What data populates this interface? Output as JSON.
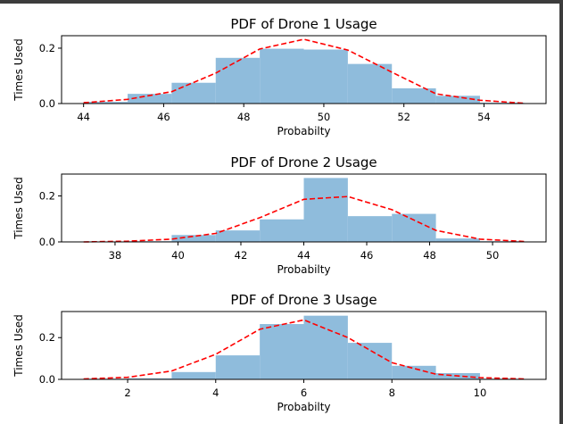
{
  "chart_data": [
    {
      "type": "bar",
      "title": "PDF of Drone 1 Usage",
      "xlabel": "Probabilty",
      "ylabel": "Times Used",
      "xlim": [
        43.45,
        55.55
      ],
      "ylim": [
        0,
        0.245
      ],
      "xticks": [
        44,
        46,
        48,
        50,
        52,
        54
      ],
      "yticks": [
        0.0,
        0.2
      ],
      "bar_color": "#8fbcdc",
      "line_color": "#ff0000",
      "bins": [
        {
          "x0": 44.0,
          "x1": 45.1,
          "h": 0.006
        },
        {
          "x0": 45.1,
          "x1": 46.2,
          "h": 0.035
        },
        {
          "x0": 46.2,
          "x1": 47.3,
          "h": 0.075
        },
        {
          "x0": 47.3,
          "x1": 48.4,
          "h": 0.165
        },
        {
          "x0": 48.4,
          "x1": 49.5,
          "h": 0.198
        },
        {
          "x0": 49.5,
          "x1": 50.6,
          "h": 0.195
        },
        {
          "x0": 50.6,
          "x1": 51.7,
          "h": 0.143
        },
        {
          "x0": 51.7,
          "x1": 52.8,
          "h": 0.055
        },
        {
          "x0": 52.8,
          "x1": 53.9,
          "h": 0.028
        },
        {
          "x0": 53.9,
          "x1": 55.0,
          "h": 0.003
        }
      ],
      "fit": {
        "x": [
          44.0,
          45.1,
          46.2,
          47.3,
          48.4,
          49.5,
          50.6,
          51.7,
          52.8,
          53.9,
          55.0
        ],
        "y": [
          0.003,
          0.015,
          0.043,
          0.11,
          0.197,
          0.232,
          0.193,
          0.113,
          0.035,
          0.012,
          0.001
        ]
      }
    },
    {
      "type": "bar",
      "title": "PDF of Drone 2 Usage",
      "xlabel": "Probabilty",
      "ylabel": "Times Used",
      "xlim": [
        36.3,
        51.7
      ],
      "ylim": [
        0,
        0.295
      ],
      "xticks": [
        38,
        40,
        42,
        44,
        46,
        48,
        50
      ],
      "yticks": [
        0.0,
        0.2
      ],
      "bar_color": "#8fbcdc",
      "line_color": "#ff0000",
      "bins": [
        {
          "x0": 37.0,
          "x1": 38.4,
          "h": 0.0
        },
        {
          "x0": 38.4,
          "x1": 39.8,
          "h": 0.003
        },
        {
          "x0": 39.8,
          "x1": 41.2,
          "h": 0.03
        },
        {
          "x0": 41.2,
          "x1": 42.6,
          "h": 0.05
        },
        {
          "x0": 42.6,
          "x1": 44.0,
          "h": 0.098
        },
        {
          "x0": 44.0,
          "x1": 45.4,
          "h": 0.278
        },
        {
          "x0": 45.4,
          "x1": 46.8,
          "h": 0.112
        },
        {
          "x0": 46.8,
          "x1": 48.2,
          "h": 0.122
        },
        {
          "x0": 48.2,
          "x1": 49.6,
          "h": 0.015
        },
        {
          "x0": 49.6,
          "x1": 51.0,
          "h": 0.003
        }
      ],
      "fit": {
        "x": [
          37.0,
          38.4,
          39.8,
          41.2,
          42.6,
          44.0,
          45.4,
          46.8,
          48.2,
          49.6,
          51.0
        ],
        "y": [
          0.0,
          0.003,
          0.012,
          0.037,
          0.105,
          0.185,
          0.197,
          0.14,
          0.05,
          0.012,
          0.002
        ]
      }
    },
    {
      "type": "bar",
      "title": "PDF of Drone 3 Usage",
      "xlabel": "Probabilty",
      "ylabel": "Times Used",
      "xlim": [
        0.5,
        11.5
      ],
      "ylim": [
        0,
        0.325
      ],
      "xticks": [
        2,
        4,
        6,
        8,
        10
      ],
      "yticks": [
        0.0,
        0.2
      ],
      "bar_color": "#8fbcdc",
      "line_color": "#ff0000",
      "bins": [
        {
          "x0": 1.0,
          "x1": 2.0,
          "h": 0.003
        },
        {
          "x0": 2.0,
          "x1": 3.0,
          "h": 0.005
        },
        {
          "x0": 3.0,
          "x1": 4.0,
          "h": 0.035
        },
        {
          "x0": 4.0,
          "x1": 5.0,
          "h": 0.115
        },
        {
          "x0": 5.0,
          "x1": 6.0,
          "h": 0.265
        },
        {
          "x0": 6.0,
          "x1": 7.0,
          "h": 0.305
        },
        {
          "x0": 7.0,
          "x1": 8.0,
          "h": 0.175
        },
        {
          "x0": 8.0,
          "x1": 9.0,
          "h": 0.065
        },
        {
          "x0": 9.0,
          "x1": 10.0,
          "h": 0.03
        },
        {
          "x0": 10.0,
          "x1": 11.0,
          "h": 0.003
        }
      ],
      "fit": {
        "x": [
          1.0,
          2.0,
          3.0,
          4.0,
          5.0,
          6.0,
          7.0,
          8.0,
          9.0,
          10.0,
          11.0
        ],
        "y": [
          0.002,
          0.01,
          0.04,
          0.12,
          0.24,
          0.285,
          0.2,
          0.08,
          0.025,
          0.008,
          0.002
        ]
      }
    }
  ]
}
